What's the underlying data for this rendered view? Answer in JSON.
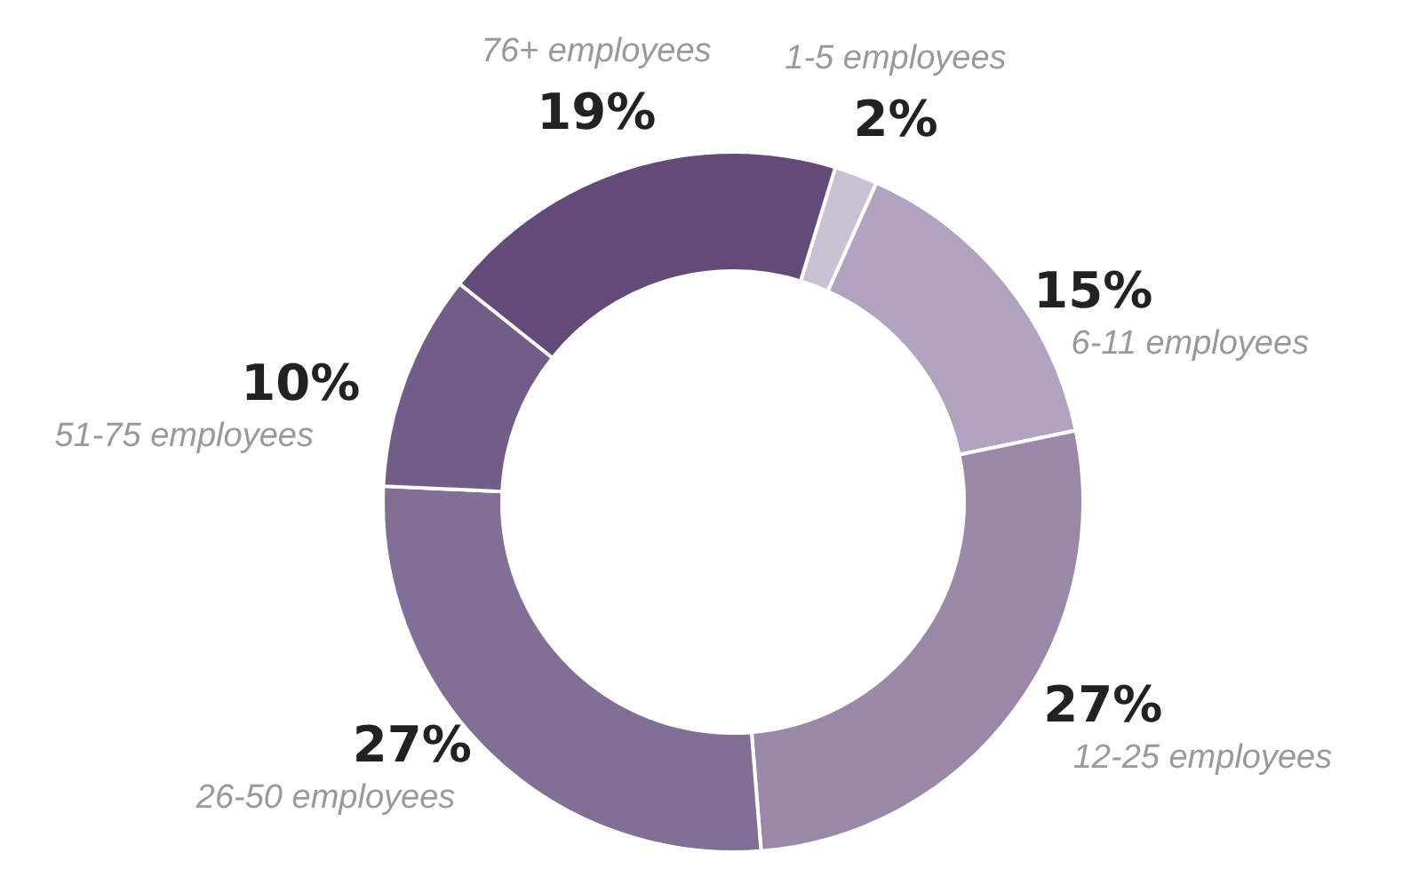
{
  "chart_data": {
    "type": "donut",
    "categories": [
      "1-5 employees",
      "6-11 employees",
      "12-25 employees",
      "26-50 employees",
      "51-75 employees",
      "76+ employees"
    ],
    "values": [
      2,
      15,
      27,
      27,
      10,
      19
    ],
    "colors": [
      "#c9c0d3",
      "#b1a3bf",
      "#9b88a8",
      "#836e96",
      "#735d88",
      "#634a78"
    ],
    "value_labels": [
      "2%",
      "15%",
      "27%",
      "27%",
      "10%",
      "19%"
    ]
  }
}
